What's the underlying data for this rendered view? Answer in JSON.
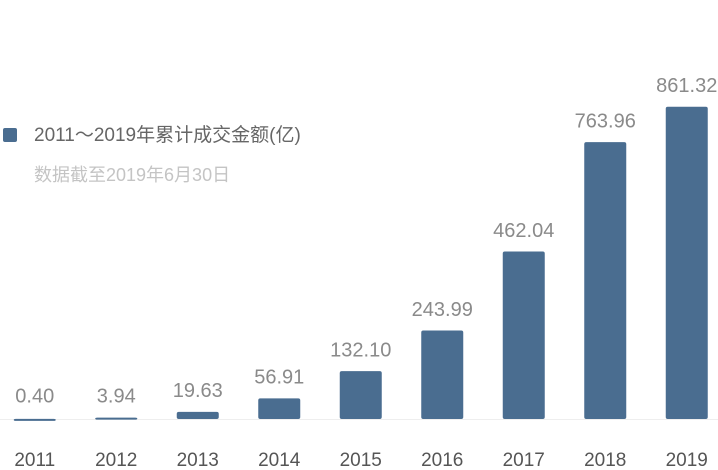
{
  "chart_data": {
    "type": "bar",
    "series": [
      {
        "name": "2011～2019年累计成交金额(亿)",
        "color": "#4a6d90",
        "values": [
          0.4,
          3.94,
          19.63,
          56.91,
          132.1,
          243.99,
          462.04,
          763.96,
          861.32
        ],
        "value_labels": [
          "0.40",
          "3.94",
          "19.63",
          "56.91",
          "132.10",
          "243.99",
          "462.04",
          "763.96",
          "861.32"
        ]
      }
    ],
    "subtitle": "数据截至2019年6月30日",
    "categories": [
      "2011",
      "2012",
      "2013",
      "2014",
      "2015",
      "2016",
      "2017",
      "2018",
      "2019"
    ],
    "ylim": [
      0,
      880
    ]
  }
}
